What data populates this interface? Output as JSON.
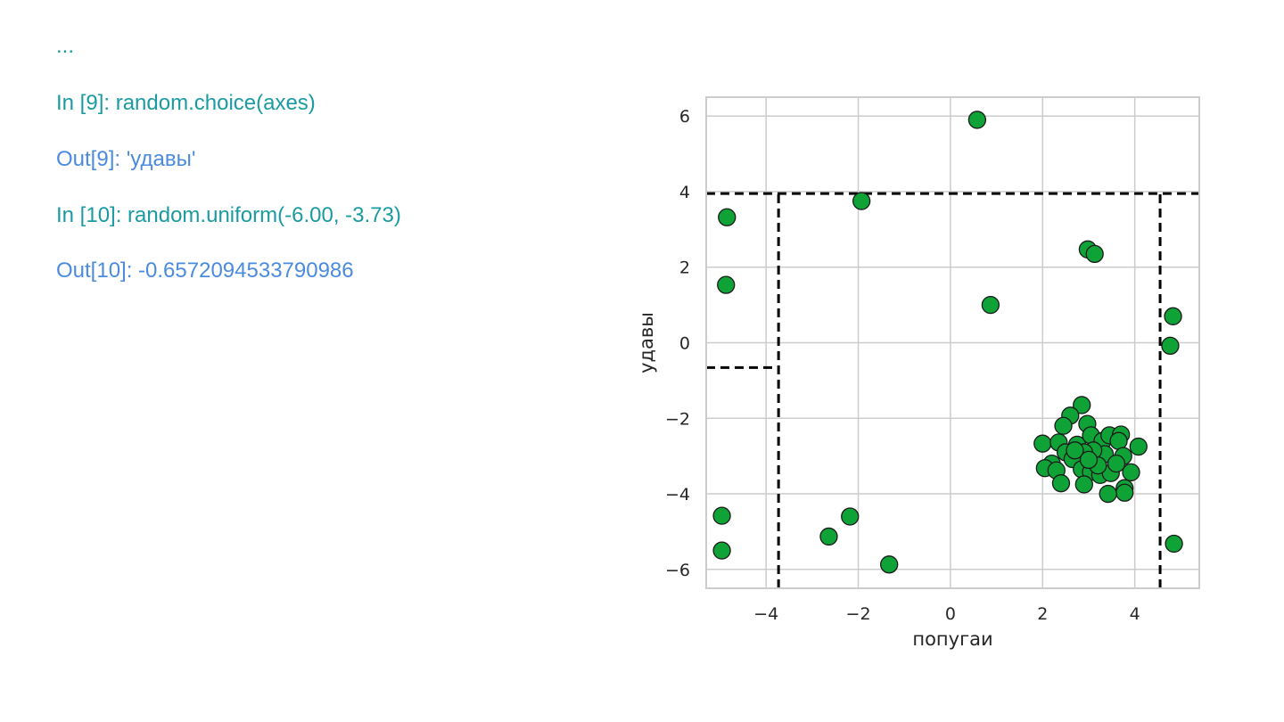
{
  "console": {
    "lines": [
      {
        "text": "...",
        "color": "#1a9ba1"
      },
      {
        "text": "In [9]: random.choice(axes)",
        "color": "#1a9ba1"
      },
      {
        "text": "Out[9]: 'удавы'",
        "color": "#4a8be0"
      },
      {
        "text": "In [10]: random.uniform(-6.00, -3.73)",
        "color": "#1a9ba1"
      },
      {
        "text": "Out[10]: -0.6572094533790986",
        "color": "#4a8be0"
      }
    ]
  },
  "chart_data": {
    "type": "scatter",
    "xlabel": "попугаи",
    "ylabel": "удавы",
    "xlim": [
      -5.3,
      5.4
    ],
    "ylim": [
      -6.5,
      6.5
    ],
    "xticks": [
      -4,
      -2,
      0,
      2,
      4
    ],
    "yticks": [
      -6,
      -4,
      -2,
      0,
      2,
      4,
      6
    ],
    "xtick_labels": [
      "−4",
      "−2",
      "0",
      "2",
      "4"
    ],
    "ytick_labels": [
      "−6",
      "−4",
      "−2",
      "0",
      "2",
      "4",
      "6"
    ],
    "grid": true,
    "marker_color": "#0fa337",
    "marker_edge": "#1a1a1a",
    "points": [
      {
        "x": 0.58,
        "y": 5.9
      },
      {
        "x": -1.93,
        "y": 3.75
      },
      {
        "x": -4.85,
        "y": 3.32
      },
      {
        "x": -4.87,
        "y": 1.53
      },
      {
        "x": 2.98,
        "y": 2.47
      },
      {
        "x": 3.13,
        "y": 2.35
      },
      {
        "x": 0.87,
        "y": 1.0
      },
      {
        "x": 4.83,
        "y": 0.7
      },
      {
        "x": 4.77,
        "y": -0.08
      },
      {
        "x": -4.96,
        "y": -4.58
      },
      {
        "x": -4.96,
        "y": -5.5
      },
      {
        "x": -2.18,
        "y": -4.6
      },
      {
        "x": -2.64,
        "y": -5.13
      },
      {
        "x": -1.33,
        "y": -5.87
      },
      {
        "x": 4.85,
        "y": -5.32
      },
      {
        "x": 2.85,
        "y": -1.65
      },
      {
        "x": 2.6,
        "y": -1.93
      },
      {
        "x": 2.45,
        "y": -2.2
      },
      {
        "x": 2.97,
        "y": -2.15
      },
      {
        "x": 2.0,
        "y": -2.67
      },
      {
        "x": 2.35,
        "y": -2.64
      },
      {
        "x": 2.5,
        "y": -2.9
      },
      {
        "x": 2.75,
        "y": -2.7
      },
      {
        "x": 3.05,
        "y": -2.45
      },
      {
        "x": 3.3,
        "y": -2.6
      },
      {
        "x": 3.45,
        "y": -2.45
      },
      {
        "x": 3.7,
        "y": -2.43
      },
      {
        "x": 3.65,
        "y": -2.6
      },
      {
        "x": 4.08,
        "y": -2.75
      },
      {
        "x": 3.75,
        "y": -3.0
      },
      {
        "x": 3.35,
        "y": -2.95
      },
      {
        "x": 3.1,
        "y": -2.85
      },
      {
        "x": 2.9,
        "y": -2.9
      },
      {
        "x": 2.65,
        "y": -3.08
      },
      {
        "x": 2.2,
        "y": -3.2
      },
      {
        "x": 2.05,
        "y": -3.32
      },
      {
        "x": 2.3,
        "y": -3.38
      },
      {
        "x": 2.85,
        "y": -3.35
      },
      {
        "x": 3.05,
        "y": -3.42
      },
      {
        "x": 3.25,
        "y": -3.5
      },
      {
        "x": 3.48,
        "y": -3.45
      },
      {
        "x": 3.92,
        "y": -3.43
      },
      {
        "x": 2.4,
        "y": -3.72
      },
      {
        "x": 2.9,
        "y": -3.75
      },
      {
        "x": 3.78,
        "y": -3.85
      },
      {
        "x": 3.78,
        "y": -3.97
      },
      {
        "x": 3.42,
        "y": -4.0
      },
      {
        "x": 3.2,
        "y": -3.25
      },
      {
        "x": 3.6,
        "y": -3.2
      },
      {
        "x": 2.7,
        "y": -2.85
      },
      {
        "x": 3.0,
        "y": -3.1
      }
    ],
    "lines": [
      {
        "x": [
          -5.3,
          5.4
        ],
        "y": [
          3.95,
          3.95
        ]
      },
      {
        "x": [
          -3.73,
          -3.73
        ],
        "y": [
          -6.5,
          3.95
        ]
      },
      {
        "x": [
          4.55,
          4.55
        ],
        "y": [
          -6.5,
          3.95
        ]
      },
      {
        "x": [
          -5.3,
          -3.73
        ],
        "y": [
          -0.657,
          -0.657
        ]
      }
    ]
  }
}
